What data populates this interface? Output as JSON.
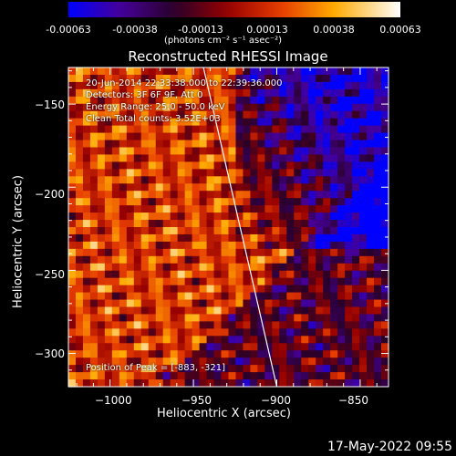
{
  "colorbar": {
    "tick_labels": [
      "-0.00063",
      "-0.00038",
      "-0.00013",
      "0.00013",
      "0.00038",
      "0.00063"
    ],
    "units_label": "(photons cm⁻² s⁻¹ asec⁻²)"
  },
  "annotations": {
    "time_range": "20-Jun-2014 22:33:38.000 to 22:39:36.000",
    "detectors": "Detectors: 3F 6F 9F, Att 0",
    "energy_range": "Energy Range: 25.0 - 50.0 keV",
    "clean_counts": "Clean    Total counts: 3.52E+03",
    "peak_position": "Position of Peak = [-883, -321]"
  },
  "timestamp": "17-May-2022 09:55",
  "chart_data": {
    "type": "heatmap",
    "title": "Reconstructed RHESSI Image",
    "xlabel": "Heliocentric X (arcsec)",
    "ylabel": "Heliocentric Y (arcsec)",
    "xlim": [
      -1025,
      -833
    ],
    "ylim": [
      -320,
      -128
    ],
    "xticks": [
      -1000,
      -950,
      -900,
      -850
    ],
    "yticks": [
      -300,
      -250,
      -200,
      -150
    ],
    "xtick_labels": [
      "−1000",
      "−950",
      "−900",
      "−850"
    ],
    "ytick_labels": [
      "−300",
      "−250",
      "−200",
      "−150"
    ],
    "colorbar_range": [
      -0.00063,
      0.00063
    ],
    "colormap": "red-temperature (blue-purple-red-orange-yellow-white)",
    "limb_line": {
      "x": [
        -944,
        -900
      ],
      "y": [
        -128,
        -320
      ]
    },
    "peak_position": [
      -883,
      -321
    ]
  }
}
